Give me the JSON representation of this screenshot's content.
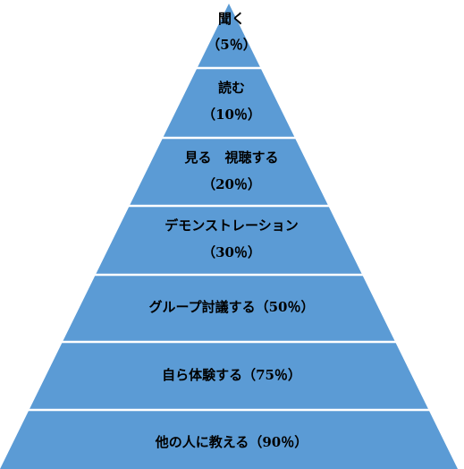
{
  "pyramid": {
    "fill_color": "#5b9bd5",
    "divider_color": "#ffffff",
    "levels": [
      {
        "line1": "聞く",
        "line2": "（5％）"
      },
      {
        "line1": "読む",
        "line2": "（10％）"
      },
      {
        "line1": "見る　視聴する",
        "line2": "（20％）"
      },
      {
        "line1": "デモンストレーション",
        "line2": "（30％）"
      },
      {
        "line1": "グループ討議する（50％）"
      },
      {
        "line1": "自ら体験する（75％）"
      },
      {
        "line1": "他の人に教える（90％）"
      }
    ]
  }
}
